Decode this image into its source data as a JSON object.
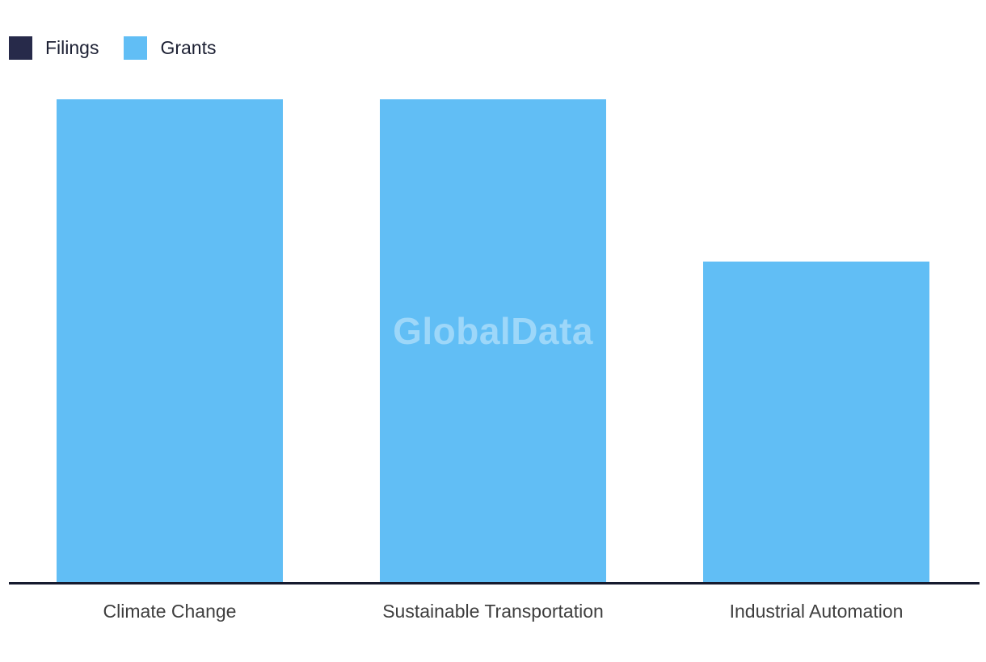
{
  "page": {
    "background": "#ffffff"
  },
  "legend": {
    "position": "top-left",
    "items": [
      {
        "label": "Filings",
        "color": "#272a4a"
      },
      {
        "label": "Grants",
        "color": "#61bef5"
      }
    ]
  },
  "watermark": {
    "text": "GlobalData"
  },
  "chart_data": {
    "type": "bar",
    "title": "",
    "xlabel": "",
    "ylabel": "",
    "categories": [
      "Climate Change",
      "Sustainable Transportation",
      "Industrial Automation"
    ],
    "series": [
      {
        "name": "Filings",
        "color": "#272a4a",
        "values": [
          0,
          0,
          0
        ]
      },
      {
        "name": "Grants",
        "color": "#61bef5",
        "values": [
          100,
          100,
          66.4
        ]
      }
    ],
    "values_unit": "relative bar height, percent of tallest bar (no y-axis tick labels shown)",
    "notes": "Filings series has no visible bars (zero height); only Grants bars are drawn",
    "ylim": [
      0,
      100
    ],
    "grid": false,
    "y_axis_visible": false,
    "legend_position": "top-left",
    "axis_line_color": "#161a2e",
    "category_label_color": "#3e3e3e"
  }
}
